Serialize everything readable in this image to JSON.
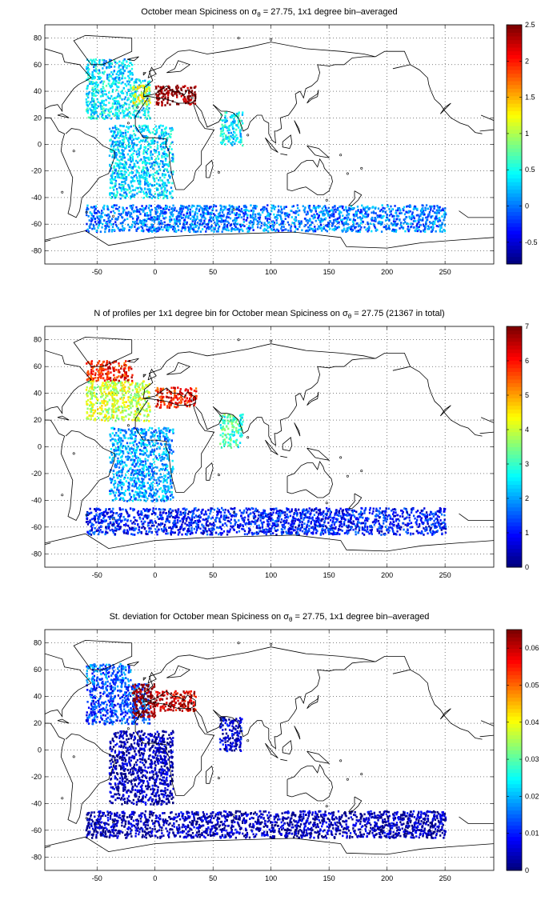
{
  "chart_data": [
    {
      "type": "heatmap",
      "title": "October mean Spiciness on σθ = 27.75, 1x1 degree bin–averaged",
      "title_parts": {
        "pre": "October mean Spiciness on ",
        "sigma": "σ",
        "sub": "θ",
        "post": " = 27.75, 1x1 degree bin–averaged"
      },
      "xlabel": "",
      "ylabel": "",
      "xlim": [
        -95,
        292
      ],
      "ylim": [
        -90,
        90
      ],
      "x_ticks": [
        -50,
        0,
        50,
        100,
        150,
        200,
        250
      ],
      "y_ticks": [
        -80,
        -60,
        -40,
        -20,
        0,
        20,
        40,
        60,
        80
      ],
      "grid": true,
      "colorbar": {
        "min": -0.8,
        "max": 2.5,
        "ticks": [
          -0.5,
          0,
          0.5,
          1,
          1.5,
          2,
          2.5
        ]
      },
      "colormap": "jet",
      "regions": [
        {
          "name": "north-atlantic",
          "x": [
            -60,
            -5
          ],
          "y": [
            20,
            50
          ],
          "value": 0.4
        },
        {
          "name": "labrador-sea",
          "x": [
            -60,
            -20
          ],
          "y": [
            50,
            65
          ],
          "value": 0.3
        },
        {
          "name": "gibraltar-outflow",
          "x": [
            -20,
            -5
          ],
          "y": [
            30,
            45
          ],
          "value": 1.2
        },
        {
          "name": "mediterranean",
          "x": [
            0,
            35
          ],
          "y": [
            30,
            45
          ],
          "value": 2.5
        },
        {
          "name": "south-atlantic",
          "x": [
            -40,
            15
          ],
          "y": [
            -40,
            15
          ],
          "value": 0.3
        },
        {
          "name": "arabian-sea",
          "x": [
            55,
            75
          ],
          "y": [
            0,
            25
          ],
          "value": 0.4
        },
        {
          "name": "southern-ocean",
          "x": [
            -60,
            250
          ],
          "y": [
            -65,
            -45
          ],
          "value": 0.0
        }
      ]
    },
    {
      "type": "heatmap",
      "title": "N of profiles per 1x1 degree bin for October mean Spiciness on σθ = 27.75 (21367 in total)",
      "title_parts": {
        "pre": "N of profiles per 1x1 degree bin for October mean Spiciness on ",
        "sigma": "σ",
        "sub": "θ",
        "post": " = 27.75 (21367 in total)"
      },
      "xlabel": "",
      "ylabel": "",
      "xlim": [
        -95,
        292
      ],
      "ylim": [
        -90,
        90
      ],
      "x_ticks": [
        -50,
        0,
        50,
        100,
        150,
        200,
        250
      ],
      "y_ticks": [
        -80,
        -60,
        -40,
        -20,
        0,
        20,
        40,
        60,
        80
      ],
      "grid": true,
      "colorbar": {
        "min": 0,
        "max": 7,
        "ticks": [
          0,
          1,
          2,
          3,
          4,
          5,
          6,
          7
        ]
      },
      "colormap": "jet",
      "regions": [
        {
          "name": "north-atlantic",
          "x": [
            -60,
            -5
          ],
          "y": [
            20,
            50
          ],
          "value": 4
        },
        {
          "name": "labrador-sea",
          "x": [
            -60,
            -20
          ],
          "y": [
            50,
            65
          ],
          "value": 6
        },
        {
          "name": "mediterranean",
          "x": [
            0,
            35
          ],
          "y": [
            30,
            45
          ],
          "value": 6
        },
        {
          "name": "south-atlantic",
          "x": [
            -40,
            15
          ],
          "y": [
            -40,
            15
          ],
          "value": 2
        },
        {
          "name": "arabian-sea",
          "x": [
            55,
            75
          ],
          "y": [
            0,
            25
          ],
          "value": 3
        },
        {
          "name": "southern-ocean",
          "x": [
            -60,
            250
          ],
          "y": [
            -65,
            -45
          ],
          "value": 1
        }
      ]
    },
    {
      "type": "heatmap",
      "title": "St. deviation for October mean Spiciness on σθ = 27.75, 1x1 degree bin–averaged",
      "title_parts": {
        "pre": "St. deviation for October mean Spiciness on ",
        "sigma": "σ",
        "sub": "θ",
        "post": " = 27.75, 1x1 degree bin–averaged"
      },
      "xlabel": "",
      "ylabel": "",
      "xlim": [
        -95,
        292
      ],
      "ylim": [
        -90,
        90
      ],
      "x_ticks": [
        -50,
        0,
        50,
        100,
        150,
        200,
        250
      ],
      "y_ticks": [
        -80,
        -60,
        -40,
        -20,
        0,
        20,
        40,
        60,
        80
      ],
      "grid": true,
      "colorbar": {
        "min": 0,
        "max": 0.065,
        "ticks": [
          0,
          0.01,
          0.02,
          0.03,
          0.04,
          0.05,
          0.06
        ]
      },
      "colormap": "jet",
      "regions": [
        {
          "name": "north-atlantic",
          "x": [
            -60,
            -5
          ],
          "y": [
            20,
            50
          ],
          "value": 0.012
        },
        {
          "name": "labrador-sea",
          "x": [
            -60,
            -20
          ],
          "y": [
            50,
            65
          ],
          "value": 0.015
        },
        {
          "name": "gibraltar-outflow",
          "x": [
            -20,
            0
          ],
          "y": [
            25,
            50
          ],
          "value": 0.065
        },
        {
          "name": "mediterranean",
          "x": [
            0,
            35
          ],
          "y": [
            30,
            45
          ],
          "value": 0.06
        },
        {
          "name": "south-atlantic",
          "x": [
            -40,
            15
          ],
          "y": [
            -40,
            15
          ],
          "value": 0.003
        },
        {
          "name": "arabian-sea",
          "x": [
            55,
            75
          ],
          "y": [
            0,
            25
          ],
          "value": 0.005
        },
        {
          "name": "southern-ocean",
          "x": [
            -60,
            250
          ],
          "y": [
            -65,
            -45
          ],
          "value": 0.003
        }
      ]
    }
  ]
}
